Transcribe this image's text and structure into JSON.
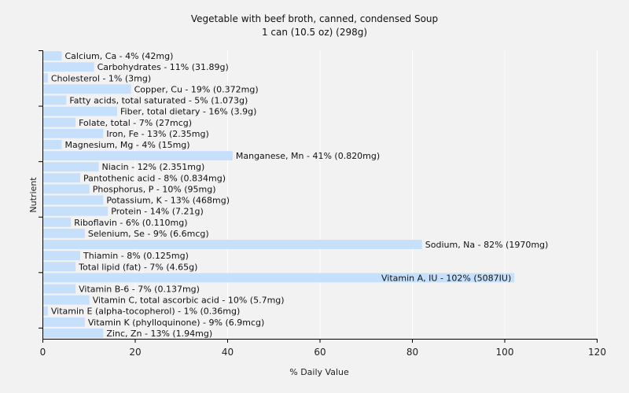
{
  "chart_data": {
    "type": "bar",
    "orientation": "horizontal",
    "title": "Vegetable with beef broth, canned, condensed Soup",
    "subtitle": "1 can (10.5 oz) (298g)",
    "xlabel": "% Daily Value",
    "ylabel": "Nutrient",
    "xlim": [
      0,
      120
    ],
    "xticks": [
      "0",
      "20",
      "40",
      "60",
      "80",
      "100",
      "120"
    ],
    "grid": true,
    "bar_color": "#c6e0fb",
    "background": "#f2f2f2",
    "categories": [
      "Calcium, Ca",
      "Carbohydrates",
      "Cholesterol",
      "Copper, Cu",
      "Fatty acids, total saturated",
      "Fiber, total dietary",
      "Folate, total",
      "Iron, Fe",
      "Magnesium, Mg",
      "Manganese, Mn",
      "Niacin",
      "Pantothenic acid",
      "Phosphorus, P",
      "Potassium, K",
      "Protein",
      "Riboflavin",
      "Selenium, Se",
      "Sodium, Na",
      "Thiamin",
      "Total lipid (fat)",
      "Vitamin A, IU",
      "Vitamin B-6",
      "Vitamin C, total ascorbic acid",
      "Vitamin E (alpha-tocopherol)",
      "Vitamin K (phylloquinone)",
      "Zinc, Zn"
    ],
    "values": [
      4,
      11,
      1,
      19,
      5,
      16,
      7,
      13,
      4,
      41,
      12,
      8,
      10,
      13,
      14,
      6,
      9,
      82,
      8,
      7,
      102,
      7,
      10,
      1,
      9,
      13
    ],
    "labels": [
      "Calcium, Ca - 4% (42mg)",
      "Carbohydrates - 11% (31.89g)",
      "Cholesterol - 1% (3mg)",
      "Copper, Cu - 19% (0.372mg)",
      "Fatty acids, total saturated - 5% (1.073g)",
      "Fiber, total dietary - 16% (3.9g)",
      "Folate, total - 7% (27mcg)",
      "Iron, Fe - 13% (2.35mg)",
      "Magnesium, Mg - 4% (15mg)",
      "Manganese, Mn - 41% (0.820mg)",
      "Niacin - 12% (2.351mg)",
      "Pantothenic acid - 8% (0.834mg)",
      "Phosphorus, P - 10% (95mg)",
      "Potassium, K - 13% (468mg)",
      "Protein - 14% (7.21g)",
      "Riboflavin - 6% (0.110mg)",
      "Selenium, Se - 9% (6.6mcg)",
      "Sodium, Na - 82% (1970mg)",
      "Thiamin - 8% (0.125mg)",
      "Total lipid (fat) - 7% (4.65g)",
      "Vitamin A, IU - 102% (5087IU)",
      "Vitamin B-6 - 7% (0.137mg)",
      "Vitamin C, total ascorbic acid - 10% (5.7mg)",
      "Vitamin E (alpha-tocopherol) - 1% (0.36mg)",
      "Vitamin K (phylloquinone) - 9% (6.9mcg)",
      "Zinc, Zn - 13% (1.94mg)"
    ]
  }
}
